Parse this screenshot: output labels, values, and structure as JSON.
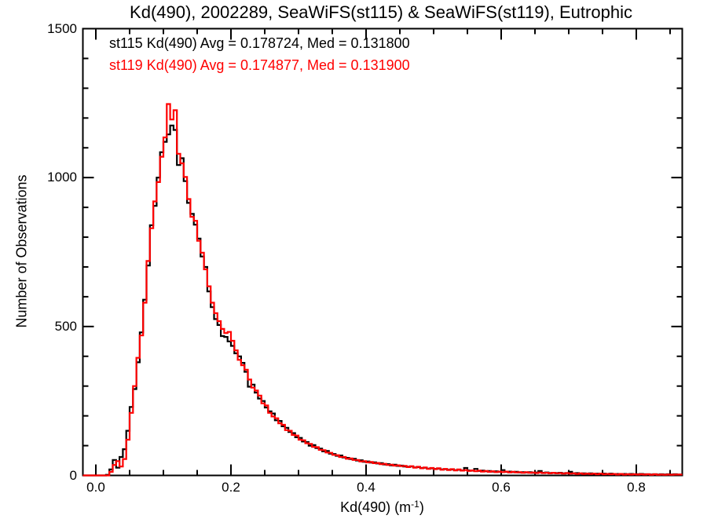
{
  "chart_data": {
    "type": "bar",
    "subtype": "step-histogram-overlay",
    "title": "Kd(490), 2002289, SeaWiFS(st115) & SeaWiFS(st119), Eutrophic",
    "ylabel": "Number of Observations",
    "xlabel_main": "Kd(490) (m",
    "xlabel_sup": "-1",
    "xlabel_close": ")",
    "xlim": [
      -0.019,
      0.868
    ],
    "ylim": [
      0,
      1500
    ],
    "x_major_ticks": [
      0.0,
      0.2,
      0.4,
      0.6,
      0.8
    ],
    "x_tick_labels": [
      "0.0",
      "0.2",
      "0.4",
      "0.6",
      "0.8"
    ],
    "x_minor_step": 0.05,
    "y_major_ticks": [
      0,
      500,
      1000,
      1500
    ],
    "y_tick_labels": [
      "0",
      "500",
      "1000",
      "1500"
    ],
    "y_minor_step": 100,
    "grid": false,
    "legend_position": "top-left-inside",
    "bin_start": 0.0,
    "bin_width": 0.005,
    "series": [
      {
        "name": "st115",
        "color": "#000000",
        "label": "st115 Kd(490) Avg = 0.178724, Med = 0.131800",
        "avg": 0.178724,
        "med": 0.1318,
        "values": [
          0,
          0,
          0,
          2,
          20,
          52,
          26,
          62,
          88,
          150,
          230,
          290,
          380,
          480,
          590,
          705,
          840,
          905,
          1000,
          1085,
          1120,
          1145,
          1175,
          1160,
          1042,
          1065,
          988,
          915,
          878,
          842,
          795,
          735,
          700,
          618,
          565,
          525,
          505,
          468,
          465,
          450,
          435,
          410,
          400,
          378,
          348,
          298,
          305,
          278,
          258,
          250,
          228,
          215,
          208,
          185,
          183,
          165,
          160,
          146,
          142,
          128,
          126,
          114,
          112,
          100,
          102,
          92,
          90,
          81,
          82,
          73,
          72,
          66,
          67,
          60,
          59,
          55,
          56,
          50,
          51,
          46,
          47,
          43,
          44,
          40,
          41,
          37,
          38,
          34,
          36,
          32,
          33,
          30,
          29,
          30,
          27,
          28,
          25,
          26,
          23,
          24,
          22,
          23,
          20,
          21,
          19,
          20,
          18,
          19,
          17,
          25,
          17,
          16,
          22,
          15,
          16,
          14,
          15,
          13,
          14,
          12,
          18,
          12,
          13,
          11,
          12,
          10,
          11,
          10,
          11,
          9,
          10,
          15,
          9,
          10,
          8,
          9,
          8,
          9,
          7,
          8,
          12,
          7,
          8,
          6,
          7,
          6,
          7,
          5,
          6,
          5,
          6,
          5,
          6,
          4,
          5,
          4,
          5,
          4,
          5,
          4,
          4,
          5,
          4,
          4,
          3,
          4,
          3,
          4,
          3,
          4,
          3,
          4,
          3
        ]
      },
      {
        "name": "st119",
        "color": "#ff0000",
        "label": "st119 Kd(490) Avg = 0.174877, Med = 0.131900",
        "avg": 0.174877,
        "med": 0.1319,
        "values": [
          0,
          0,
          0,
          0,
          12,
          35,
          48,
          30,
          55,
          120,
          210,
          300,
          395,
          470,
          580,
          720,
          830,
          920,
          985,
          1070,
          1135,
          1247,
          1195,
          1226,
          1080,
          1048,
          1002,
          928,
          868,
          855,
          788,
          748,
          692,
          635,
          580,
          545,
          518,
          492,
          478,
          482,
          452,
          420,
          388,
          370,
          355,
          322,
          295,
          285,
          268,
          242,
          235,
          210,
          198,
          192,
          175,
          170,
          152,
          150,
          136,
          134,
          120,
          118,
          108,
          106,
          96,
          95,
          86,
          85,
          77,
          76,
          69,
          68,
          62,
          62,
          56,
          57,
          52,
          52,
          47,
          48,
          44,
          45,
          41,
          42,
          38,
          39,
          35,
          36,
          33,
          34,
          31,
          32,
          28,
          31,
          26,
          29,
          24,
          27,
          22,
          25,
          21,
          24,
          19,
          22,
          18,
          21,
          17,
          20,
          16,
          18,
          15,
          17,
          14,
          16,
          13,
          15,
          12,
          14,
          11,
          13,
          11,
          13,
          10,
          12,
          10,
          11,
          9,
          11,
          9,
          10,
          8,
          10,
          8,
          9,
          7,
          9,
          7,
          8,
          6,
          8,
          6,
          7,
          5,
          7,
          5,
          6,
          5,
          6,
          4,
          6,
          4,
          5,
          4,
          5,
          3,
          5,
          3,
          4,
          3,
          4,
          3,
          4,
          3,
          4,
          2,
          4,
          2,
          3,
          2,
          3,
          2,
          3,
          3
        ]
      }
    ]
  }
}
